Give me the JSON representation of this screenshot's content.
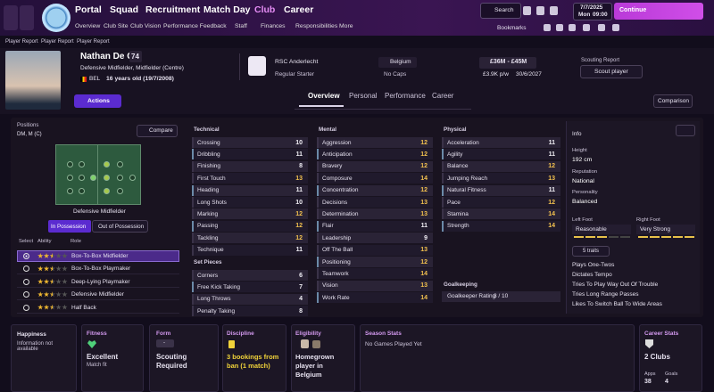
{
  "nav": {
    "menus": [
      "Portal",
      "Squad",
      "Recruitment",
      "Match Day",
      "Club",
      "Career"
    ],
    "submenu": [
      "Overview",
      "Club Site",
      "Club Vision",
      "Performance Feedback",
      "Staff",
      "Finances",
      "Responsibilities",
      "More"
    ],
    "search": "Search",
    "date": "7/7/2025",
    "day": "Mon",
    "time": "09:00",
    "continue": "Continue",
    "bookmarks": "Bookmarks"
  },
  "breadcrumb": [
    "Player Report",
    "Player Report",
    "Player Report"
  ],
  "player": {
    "name": "Nathan De Cat",
    "ability": "74",
    "positions": "Defensive Midfielder, Midfielder (Centre)",
    "nation": "BEL",
    "age": "16 years old (19/7/2008)",
    "actions": "Actions",
    "club": "RSC Anderlecht",
    "status": "Regular Starter",
    "country": "Belgium",
    "caps": "No Caps",
    "value": "£36M - £45M",
    "wage": "£3.9K p/w",
    "contract": "30/6/2027",
    "scouting_label": "Scouting Report",
    "scout": "Scout player"
  },
  "tabs": [
    "Overview",
    "Personal",
    "Performance",
    "Career"
  ],
  "comparison": "Comparison",
  "positions_panel": {
    "title": "Positions",
    "value": "DM, M (C)",
    "compare": "Compare",
    "role_label": "Defensive Midfielder",
    "in_possession": "In Possession",
    "out_possession": "Out of Possession",
    "headers": [
      "Select",
      "Ability",
      "Role"
    ],
    "roles": [
      {
        "name": "Box-To-Box Midfielder",
        "stars": 2.5
      },
      {
        "name": "Box-To-Box Playmaker",
        "stars": 2.5
      },
      {
        "name": "Deep-Lying Playmaker",
        "stars": 2.5
      },
      {
        "name": "Defensive Midfielder",
        "stars": 2.5
      },
      {
        "name": "Half Back",
        "stars": 2.5
      }
    ]
  },
  "technical": {
    "title": "Technical",
    "rows": [
      {
        "name": "Crossing",
        "value": 10
      },
      {
        "name": "Dribbling",
        "value": 11
      },
      {
        "name": "Finishing",
        "value": 8
      },
      {
        "name": "First Touch",
        "value": 13
      },
      {
        "name": "Heading",
        "value": 11
      },
      {
        "name": "Long Shots",
        "value": 10
      },
      {
        "name": "Marking",
        "value": 12
      },
      {
        "name": "Passing",
        "value": 12
      },
      {
        "name": "Tackling",
        "value": 12
      },
      {
        "name": "Technique",
        "value": 11
      }
    ]
  },
  "set_pieces": {
    "title": "Set Pieces",
    "rows": [
      {
        "name": "Corners",
        "value": 6
      },
      {
        "name": "Free Kick Taking",
        "value": 7
      },
      {
        "name": "Long Throws",
        "value": 4
      },
      {
        "name": "Penalty Taking",
        "value": 8
      }
    ]
  },
  "mental": {
    "title": "Mental",
    "rows": [
      {
        "name": "Aggression",
        "value": 12
      },
      {
        "name": "Anticipation",
        "value": 12
      },
      {
        "name": "Bravery",
        "value": 12
      },
      {
        "name": "Composure",
        "value": 14
      },
      {
        "name": "Concentration",
        "value": 12
      },
      {
        "name": "Decisions",
        "value": 13
      },
      {
        "name": "Determination",
        "value": 13
      },
      {
        "name": "Flair",
        "value": 11
      },
      {
        "name": "Leadership",
        "value": 9
      },
      {
        "name": "Off The Ball",
        "value": 13
      },
      {
        "name": "Positioning",
        "value": 12
      },
      {
        "name": "Teamwork",
        "value": 14
      },
      {
        "name": "Vision",
        "value": 13
      },
      {
        "name": "Work Rate",
        "value": 14
      }
    ]
  },
  "physical": {
    "title": "Physical",
    "rows": [
      {
        "name": "Acceleration",
        "value": 11
      },
      {
        "name": "Agility",
        "value": 11
      },
      {
        "name": "Balance",
        "value": 12
      },
      {
        "name": "Jumping Reach",
        "value": 13
      },
      {
        "name": "Natural Fitness",
        "value": 11
      },
      {
        "name": "Pace",
        "value": 12
      },
      {
        "name": "Stamina",
        "value": 14
      },
      {
        "name": "Strength",
        "value": 14
      }
    ]
  },
  "goalkeeping": {
    "title": "Goalkeeping",
    "label": "Goalkeeper Rating",
    "value": "3 / 10"
  },
  "info": {
    "title": "Info",
    "height_label": "Height",
    "height": "192 cm",
    "reputation_label": "Reputation",
    "reputation": "National",
    "personality_label": "Personality",
    "personality": "Balanced",
    "left_foot_label": "Left Foot",
    "left_foot": "Reasonable",
    "right_foot_label": "Right Foot",
    "right_foot": "Very Strong",
    "traits_button": "5 traits",
    "traits": [
      "Plays One-Twos",
      "Dictates Tempo",
      "Tries To Play Way Out Of Trouble",
      "Tries Long Range Passes",
      "Likes To Switch Ball To Wide Areas"
    ]
  },
  "cards": {
    "happiness": {
      "title": "Happiness",
      "text": "Information not available"
    },
    "fitness": {
      "title": "Fitness",
      "value": "Excellent",
      "sub": "Match fit"
    },
    "form": {
      "title": "Form",
      "badge": "-",
      "value": "Scouting Required"
    },
    "discipline": {
      "title": "Discipline",
      "value": "3 bookings from ban (1 match)"
    },
    "eligibility": {
      "title": "Eligibility",
      "value": "Homegrown player in Belgium"
    },
    "season": {
      "title": "Season Stats",
      "text": "No Games Played Yet"
    },
    "career": {
      "title": "Career Stats",
      "value": "2 Clubs",
      "apps_label": "Apps",
      "apps": "38",
      "goals_label": "Goals",
      "goals": "4"
    }
  }
}
